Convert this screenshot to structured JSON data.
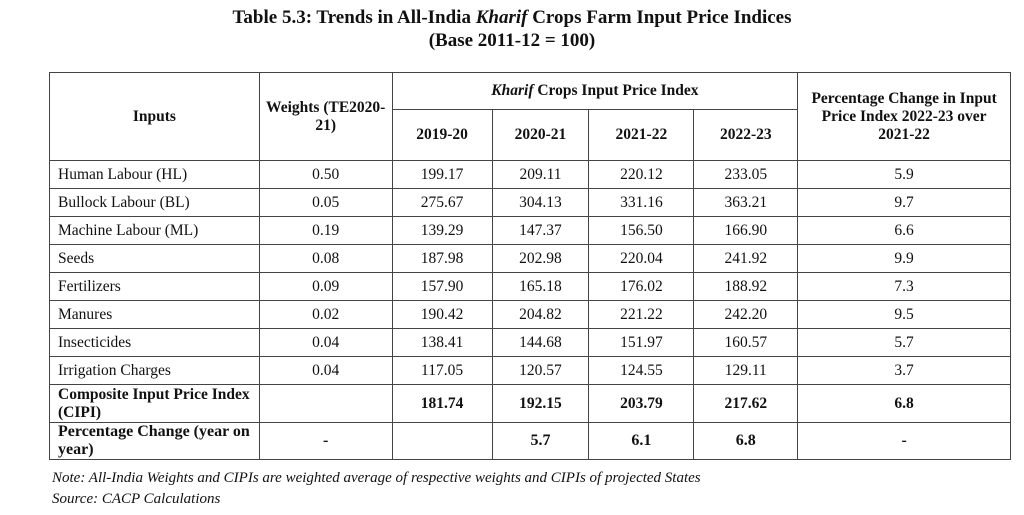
{
  "title": {
    "line1_prefix": "Table 5.3: Trends in All-India ",
    "line1_italic": "Kharif",
    "line1_suffix": " Crops Farm Input Price Indices",
    "line2": "(Base 2011-12 = 100)"
  },
  "table": {
    "header": {
      "inputs": "Inputs",
      "weights": "Weights (TE2020-21)",
      "group_italic": "Kharif",
      "group_rest": " Crops Input Price Index",
      "pct_change": "Percentage Change in Input Price Index 2022-23 over 2021-22",
      "years": [
        "2019-20",
        "2020-21",
        "2021-22",
        "2022-23"
      ]
    },
    "rows": [
      {
        "label": "Human Labour (HL)",
        "weight": "0.50",
        "values": [
          "199.17",
          "209.11",
          "220.12",
          "233.05"
        ],
        "change": "5.9"
      },
      {
        "label": "Bullock Labour (BL)",
        "weight": "0.05",
        "values": [
          "275.67",
          "304.13",
          "331.16",
          "363.21"
        ],
        "change": "9.7"
      },
      {
        "label": "Machine Labour (ML)",
        "weight": "0.19",
        "values": [
          "139.29",
          "147.37",
          "156.50",
          "166.90"
        ],
        "change": "6.6"
      },
      {
        "label": "Seeds",
        "weight": "0.08",
        "values": [
          "187.98",
          "202.98",
          "220.04",
          "241.92"
        ],
        "change": "9.9"
      },
      {
        "label": "Fertilizers",
        "weight": "0.09",
        "values": [
          "157.90",
          "165.18",
          "176.02",
          "188.92"
        ],
        "change": "7.3"
      },
      {
        "label": "Manures",
        "weight": "0.02",
        "values": [
          "190.42",
          "204.82",
          "221.22",
          "242.20"
        ],
        "change": "9.5"
      },
      {
        "label": "Insecticides",
        "weight": "0.04",
        "values": [
          "138.41",
          "144.68",
          "151.97",
          "160.57"
        ],
        "change": "5.7"
      },
      {
        "label": "Irrigation Charges",
        "weight": "0.04",
        "values": [
          "117.05",
          "120.57",
          "124.55",
          "129.11"
        ],
        "change": "3.7"
      }
    ],
    "composite": {
      "label": "Composite Input Price Index (CIPI)",
      "values": [
        "181.74",
        "192.15",
        "203.79",
        "217.62"
      ],
      "change": "6.8"
    },
    "pct_yoy": {
      "label": "Percentage Change (year on year)",
      "values": [
        "-",
        "5.7",
        "6.1",
        "6.8"
      ],
      "change": "-"
    }
  },
  "notes": {
    "note": "Note: All-India Weights and CIPIs are weighted average of respective weights and CIPIs of projected States",
    "source": "Source: CACP Calculations"
  }
}
